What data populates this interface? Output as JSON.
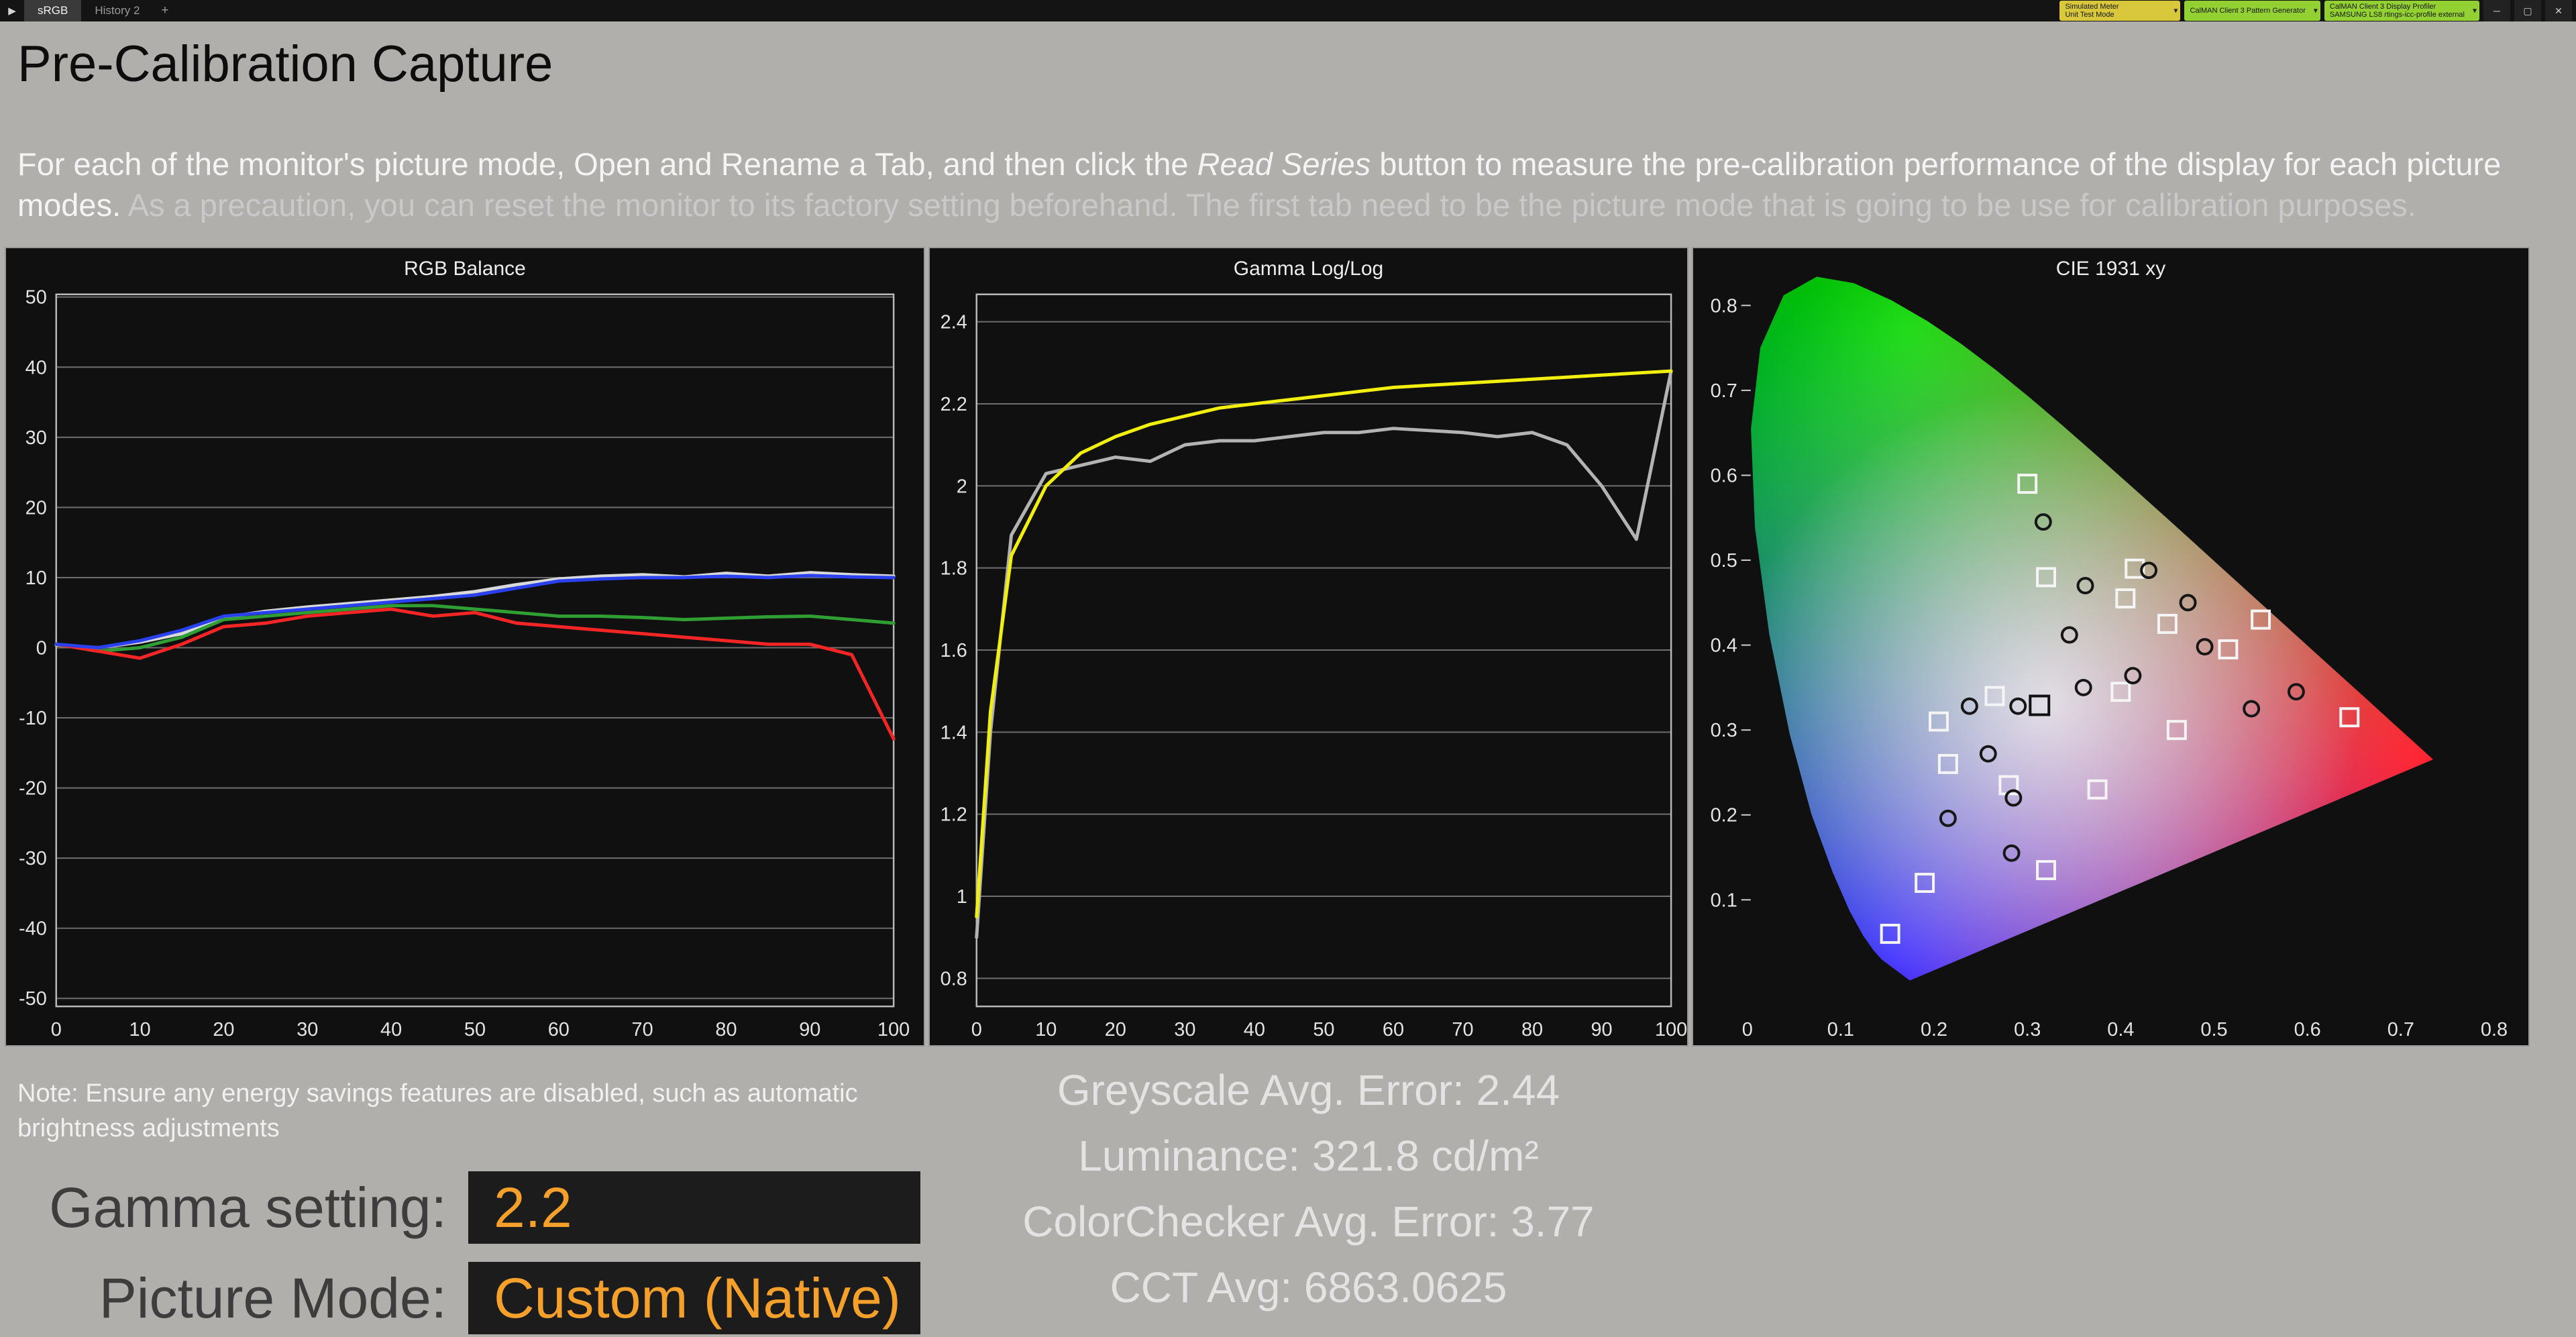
{
  "window": {
    "app_icon": "▶",
    "tabs": [
      {
        "label": "sRGB"
      },
      {
        "label": "History 2"
      }
    ],
    "new_tab_label": "+",
    "caret_icon": "▾",
    "toolbar": {
      "meter": {
        "line1": "Simulated Meter",
        "line2": "Unit Test Mode"
      },
      "pattern_generator": {
        "line1": "CalMAN Client 3 Pattern Generator",
        "line2": ""
      },
      "display_profiler": {
        "line1": "CalMAN Client 3 Display Profiler",
        "line2": "SAMSUNG LS8 rtings-icc-profile external"
      }
    },
    "window_controls": {
      "minimize": "─",
      "maximize": "▢",
      "close": "✕"
    }
  },
  "page": {
    "title": "Pre-Calibration Capture",
    "instructions": {
      "part1": "For each of the monitor's picture mode, Open and Rename a Tab, and then click the ",
      "italic": "Read Series",
      "part2": " button to measure the pre-calibration performance of the display for each picture modes. ",
      "part3": "As a precaution, you can reset the monitor to its factory setting beforehand. The first tab need to be the picture mode that is going to be use for calibration purposes."
    },
    "note_line": "Note: Ensure any energy savings features are disabled, such as automatic brightness adjustments",
    "stats": {
      "greyscale": "Greyscale Avg. Error: 2.44",
      "luminance": "Luminance: 321.8 cd/m²",
      "colorchecker": "ColorChecker Avg. Error: 3.77",
      "cct": "CCT Avg: 6863.0625"
    },
    "gamma_setting": {
      "label": "Gamma setting:",
      "value": "2.2"
    },
    "picture_mode": {
      "label": "Picture Mode:",
      "value": "Custom (Native)"
    }
  },
  "colors": {
    "accent_orange": "#f5a02b",
    "meter_button": "#d9c73c",
    "client_button": "#93d031",
    "panel_background": "#101010",
    "page_background": "#b0afac"
  },
  "chart_data": [
    {
      "type": "line",
      "title": "RGB Balance",
      "xlabel": "",
      "ylabel": "",
      "xlim": [
        0,
        100
      ],
      "ylim": [
        -50,
        50
      ],
      "x_ticks": [
        0,
        10,
        20,
        30,
        40,
        50,
        60,
        70,
        80,
        90,
        100
      ],
      "y_ticks": [
        50,
        40,
        30,
        20,
        10,
        0,
        -10,
        -20,
        -30,
        -40,
        -50
      ],
      "grid": "horizontal",
      "x": [
        0,
        5,
        10,
        15,
        20,
        25,
        30,
        35,
        40,
        45,
        50,
        55,
        60,
        65,
        70,
        75,
        80,
        85,
        90,
        95,
        100
      ],
      "series": [
        {
          "name": "white-balance",
          "color": "#d9d9d9",
          "values": [
            0.4,
            0,
            0.8,
            2,
            4.3,
            5.2,
            5.8,
            6.3,
            6.8,
            7.3,
            8,
            9,
            9.8,
            10.2,
            10.4,
            10.1,
            10.6,
            10.2,
            10.7,
            10.4,
            10.2
          ]
        },
        {
          "name": "green",
          "color": "#2f9e33",
          "values": [
            0.5,
            -0.5,
            0,
            1.5,
            4,
            4.5,
            5,
            5.5,
            6,
            6,
            5.5,
            5,
            4.5,
            4.5,
            4.3,
            4,
            4.2,
            4.4,
            4.5,
            4,
            3.5
          ]
        },
        {
          "name": "red",
          "color": "#f42525",
          "values": [
            0.5,
            -0.5,
            -1.5,
            0.5,
            3,
            3.5,
            4.5,
            5,
            5.5,
            4.5,
            5,
            3.5,
            3,
            2.5,
            2,
            1.5,
            1,
            0.5,
            0.5,
            -1,
            -13
          ]
        },
        {
          "name": "blue",
          "color": "#2a41f0",
          "values": [
            0.5,
            0,
            1,
            2.5,
            4.5,
            5,
            5.5,
            6,
            6.5,
            7,
            7.5,
            8.5,
            9.5,
            9.8,
            10,
            10,
            10.2,
            10,
            10.3,
            10.1,
            10
          ]
        }
      ]
    },
    {
      "type": "line",
      "title": "Gamma Log/Log",
      "xlabel": "",
      "ylabel": "",
      "xlim": [
        0,
        100
      ],
      "ylim": [
        0.73,
        2.47
      ],
      "x_ticks": [
        0,
        10,
        20,
        30,
        40,
        50,
        60,
        70,
        80,
        90,
        100
      ],
      "y_ticks": [
        2.4,
        2.2,
        2,
        1.8,
        1.6,
        1.4,
        1.2,
        1,
        0.8
      ],
      "grid": "horizontal",
      "x": [
        0,
        2,
        5,
        10,
        15,
        20,
        25,
        30,
        35,
        40,
        45,
        50,
        55,
        60,
        65,
        70,
        75,
        80,
        85,
        90,
        95,
        100
      ],
      "series": [
        {
          "name": "measured-gamma",
          "color": "#b3b3b3",
          "values": [
            0.9,
            1.4,
            1.88,
            2.03,
            2.05,
            2.07,
            2.06,
            2.1,
            2.11,
            2.11,
            2.12,
            2.13,
            2.13,
            2.14,
            2.135,
            2.13,
            2.12,
            2.13,
            2.1,
            2.0,
            1.87,
            2.28
          ]
        },
        {
          "name": "target-gamma",
          "color": "#f2ef0e",
          "values": [
            0.95,
            1.45,
            1.83,
            2.0,
            2.08,
            2.12,
            2.15,
            2.17,
            2.19,
            2.2,
            2.21,
            2.22,
            2.23,
            2.24,
            2.245,
            2.25,
            2.255,
            2.26,
            2.265,
            2.27,
            2.275,
            2.28
          ]
        }
      ]
    },
    {
      "type": "scatter",
      "title": "CIE 1931 xy",
      "xlabel": "",
      "ylabel": "",
      "xlim": [
        0,
        0.85
      ],
      "ylim": [
        0,
        0.85
      ],
      "x_ticks": [
        0,
        0.1,
        0.2,
        0.3,
        0.4,
        0.5,
        0.6,
        0.7,
        0.8
      ],
      "y_ticks": [
        0.8,
        0.7,
        0.6,
        0.5,
        0.4,
        0.3,
        0.2,
        0.1
      ],
      "targets": [
        [
          0.3,
          0.59
        ],
        [
          0.32,
          0.48
        ],
        [
          0.415,
          0.49
        ],
        [
          0.45,
          0.425
        ],
        [
          0.515,
          0.395
        ],
        [
          0.405,
          0.455
        ],
        [
          0.265,
          0.34
        ],
        [
          0.4,
          0.345
        ],
        [
          0.46,
          0.3
        ],
        [
          0.205,
          0.31
        ],
        [
          0.215,
          0.26
        ],
        [
          0.28,
          0.235
        ],
        [
          0.375,
          0.23
        ],
        [
          0.19,
          0.12
        ],
        [
          0.32,
          0.135
        ],
        [
          0.153,
          0.06
        ],
        [
          0.645,
          0.315
        ],
        [
          0.55,
          0.43
        ]
      ],
      "white_point_target": [
        0.313,
        0.329
      ],
      "measurements": [
        [
          0.317,
          0.545
        ],
        [
          0.362,
          0.47
        ],
        [
          0.43,
          0.488
        ],
        [
          0.472,
          0.45
        ],
        [
          0.49,
          0.398
        ],
        [
          0.345,
          0.412
        ],
        [
          0.36,
          0.35
        ],
        [
          0.29,
          0.328
        ],
        [
          0.238,
          0.328
        ],
        [
          0.258,
          0.272
        ],
        [
          0.285,
          0.22
        ],
        [
          0.215,
          0.196
        ],
        [
          0.283,
          0.155
        ],
        [
          0.54,
          0.325
        ],
        [
          0.588,
          0.345
        ],
        [
          0.413,
          0.364
        ]
      ]
    }
  ]
}
